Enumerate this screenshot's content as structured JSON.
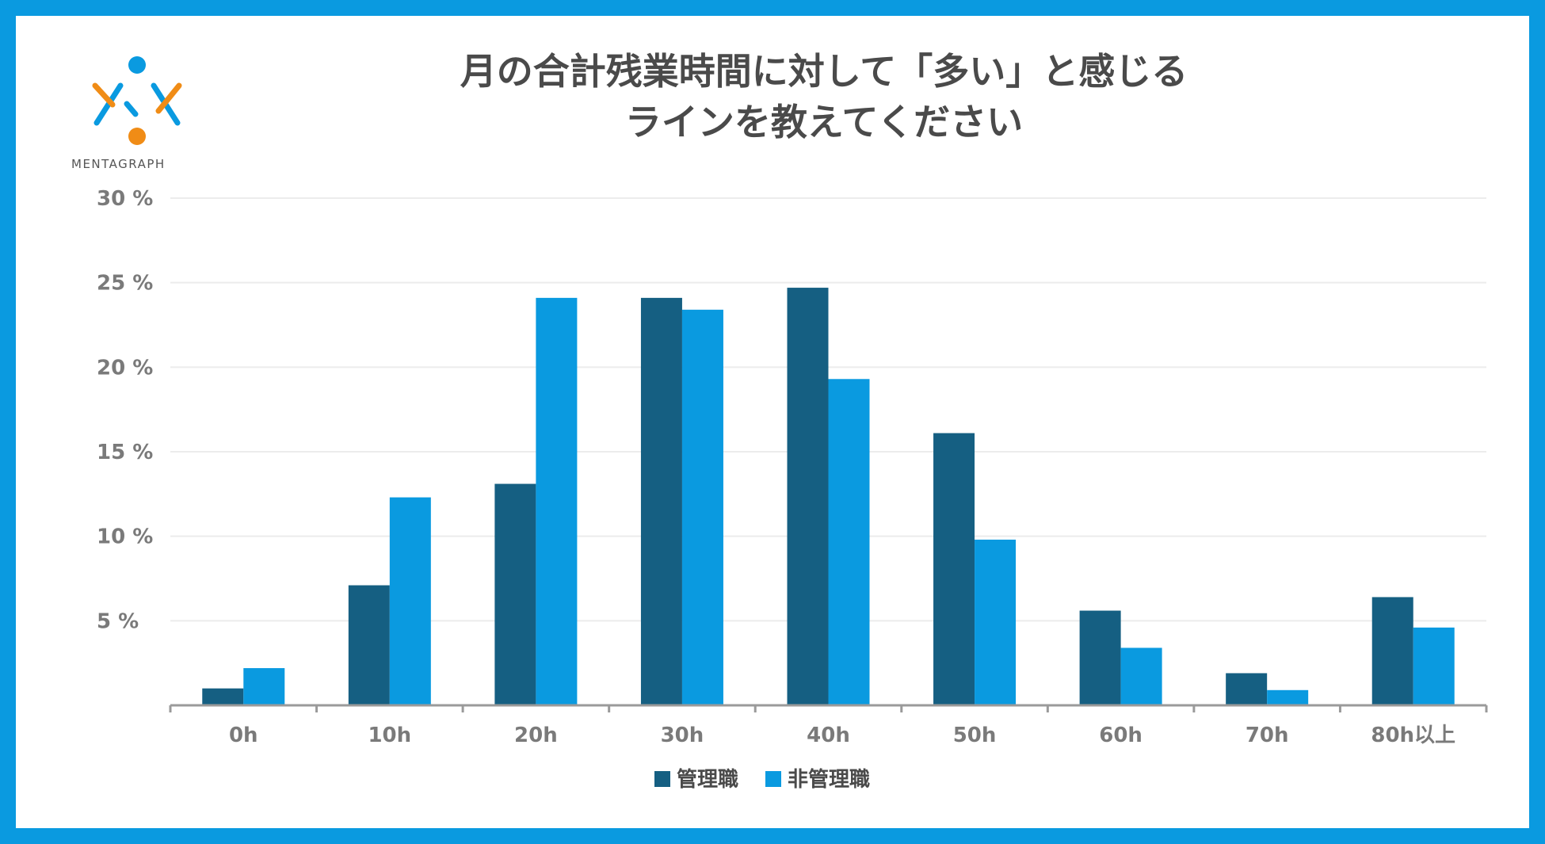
{
  "brand": {
    "name": "MENTAGRAPH",
    "colors": {
      "frame": "#0a9ae0",
      "orange": "#f08c16",
      "blue": "#0a9ae0"
    }
  },
  "chart_data": {
    "type": "bar",
    "title_lines": [
      "月の合計残業時間に対して「多い」と感じる",
      "ラインを教えてください"
    ],
    "categories": [
      "0h",
      "10h",
      "20h",
      "30h",
      "40h",
      "50h",
      "60h",
      "70h",
      "80h以上"
    ],
    "series": [
      {
        "name": "管理職",
        "color": "#155f82",
        "values": [
          1.0,
          7.1,
          13.1,
          24.1,
          24.7,
          16.1,
          5.6,
          1.9,
          6.4
        ]
      },
      {
        "name": "非管理職",
        "color": "#0a9ae0",
        "values": [
          2.2,
          12.3,
          24.1,
          23.4,
          19.3,
          9.8,
          3.4,
          0.9,
          4.6
        ]
      }
    ],
    "ylim": [
      0,
      30
    ],
    "yticks": [
      {
        "value": 5,
        "label": "5 %"
      },
      {
        "value": 10,
        "label": "10 %"
      },
      {
        "value": 15,
        "label": "15 %"
      },
      {
        "value": 20,
        "label": "20 %"
      },
      {
        "value": 25,
        "label": "25 %"
      },
      {
        "value": 30,
        "label": "30 %"
      }
    ],
    "xlabel": "",
    "ylabel": "",
    "grid": true,
    "legend": "bottom-center"
  }
}
